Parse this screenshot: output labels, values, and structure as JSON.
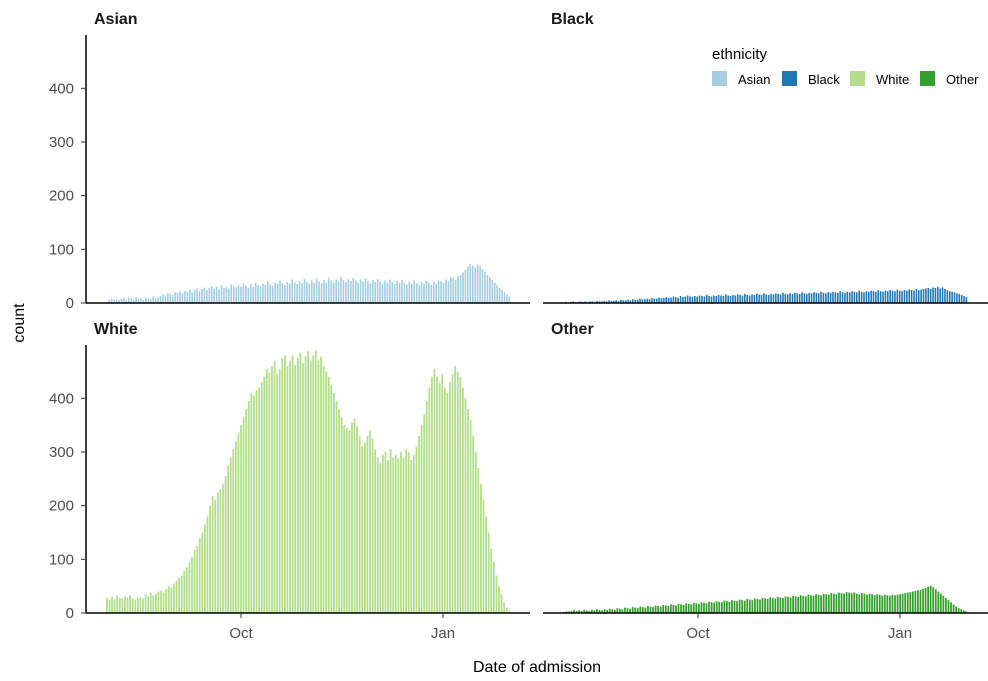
{
  "chart_data": {
    "type": "bar",
    "xlabel": "Date of admission",
    "ylabel": "count",
    "x_tick_labels": [
      "Oct",
      "Jan"
    ],
    "y_tick_labels": [
      "0",
      "100",
      "200",
      "300",
      "400"
    ],
    "ylim": [
      0,
      490
    ],
    "grid": false,
    "legend": {
      "title": "ethnicity",
      "placement": "top-right",
      "entries": [
        "Asian",
        "Black",
        "White",
        "Other"
      ]
    },
    "colors": {
      "Asian": "#a6cee3",
      "Black": "#1f78b4",
      "White": "#b2df8a",
      "Other": "#33a02c"
    },
    "facets": [
      {
        "name": "Asian",
        "color": "#a6cee3",
        "values": [
          2,
          6,
          8,
          6,
          7,
          5,
          8,
          9,
          5,
          10,
          8,
          6,
          11,
          8,
          9,
          6,
          10,
          8,
          7,
          12,
          9,
          11,
          13,
          16,
          14,
          18,
          17,
          15,
          20,
          19,
          22,
          18,
          23,
          21,
          25,
          20,
          24,
          27,
          22,
          26,
          29,
          24,
          28,
          31,
          26,
          30,
          25,
          33,
          28,
          30,
          27,
          35,
          31,
          29,
          33,
          30,
          36,
          32,
          28,
          35,
          30,
          38,
          33,
          31,
          36,
          34,
          40,
          35,
          32,
          38,
          36,
          42,
          37,
          33,
          39,
          36,
          44,
          38,
          35,
          41,
          37,
          45,
          39,
          36,
          42,
          38,
          46,
          40,
          37,
          43,
          38,
          47,
          42,
          38,
          44,
          40,
          48,
          43,
          39,
          45,
          41,
          47,
          42,
          38,
          44,
          40,
          46,
          41,
          37,
          43,
          39,
          45,
          40,
          36,
          42,
          38,
          44,
          39,
          35,
          41,
          37,
          43,
          38,
          34,
          40,
          36,
          42,
          37,
          33,
          39,
          35,
          41,
          38,
          34,
          40,
          36,
          42,
          40,
          37,
          44,
          41,
          48,
          46,
          43,
          50,
          52,
          57,
          62,
          68,
          73,
          70,
          66,
          72,
          69,
          63,
          58,
          52,
          48,
          43,
          38,
          33,
          28,
          24,
          20,
          16,
          12
        ],
        "ylim": [
          0,
          490
        ]
      },
      {
        "name": "Black",
        "color": "#1f78b4",
        "values": [
          1,
          2,
          1,
          2,
          3,
          2,
          2,
          3,
          2,
          3,
          2,
          3,
          3,
          2,
          4,
          3,
          3,
          4,
          3,
          5,
          4,
          4,
          5,
          4,
          6,
          5,
          5,
          6,
          5,
          7,
          6,
          6,
          8,
          7,
          7,
          8,
          7,
          9,
          8,
          8,
          10,
          9,
          9,
          11,
          10,
          10,
          12,
          11,
          10,
          13,
          11,
          12,
          14,
          12,
          11,
          13,
          12,
          14,
          13,
          12,
          15,
          13,
          12,
          14,
          13,
          15,
          14,
          13,
          16,
          14,
          13,
          15,
          14,
          16,
          15,
          14,
          17,
          15,
          14,
          16,
          15,
          17,
          16,
          15,
          18,
          16,
          15,
          17,
          16,
          18,
          17,
          16,
          19,
          17,
          16,
          18,
          17,
          19,
          18,
          17,
          20,
          18,
          17,
          19,
          18,
          20,
          19,
          18,
          21,
          19,
          18,
          20,
          19,
          21,
          20,
          19,
          22,
          20,
          19,
          21,
          20,
          22,
          21,
          20,
          23,
          21,
          20,
          22,
          21,
          23,
          22,
          21,
          24,
          22,
          21,
          23,
          22,
          24,
          23,
          22,
          25,
          23,
          22,
          24,
          23,
          25,
          24,
          23,
          26,
          24,
          25,
          26,
          27,
          28,
          26,
          29,
          28,
          30,
          27,
          29,
          26,
          24,
          22,
          21,
          20,
          18,
          17,
          15,
          13,
          11
        ],
        "ylim": [
          0,
          490
        ]
      },
      {
        "name": "White",
        "color": "#b2df8a",
        "values": [
          28,
          25,
          30,
          26,
          32,
          28,
          27,
          31,
          29,
          33,
          26,
          24,
          28,
          30,
          27,
          35,
          31,
          38,
          33,
          36,
          40,
          42,
          38,
          45,
          50,
          48,
          55,
          60,
          65,
          70,
          78,
          85,
          95,
          105,
          118,
          125,
          140,
          150,
          165,
          180,
          200,
          218,
          210,
          225,
          230,
          240,
          255,
          275,
          290,
          305,
          320,
          335,
          350,
          365,
          380,
          395,
          410,
          405,
          415,
          420,
          430,
          440,
          455,
          448,
          460,
          470,
          445,
          455,
          475,
          480,
          460,
          470,
          480,
          462,
          475,
          485,
          465,
          478,
          488,
          470,
          480,
          490,
          470,
          478,
          460,
          450,
          440,
          425,
          410,
          395,
          380,
          365,
          350,
          345,
          340,
          355,
          362,
          348,
          330,
          310,
          318,
          330,
          340,
          325,
          305,
          290,
          280,
          295,
          300,
          285,
          305,
          290,
          295,
          288,
          300,
          290,
          305,
          300,
          285,
          295,
          310,
          330,
          350,
          370,
          395,
          420,
          440,
          455,
          440,
          430,
          445,
          420,
          410,
          430,
          445,
          460,
          450,
          440,
          420,
          400,
          380,
          360,
          330,
          300,
          270,
          240,
          210,
          180,
          150,
          120,
          95,
          70,
          50,
          35,
          20,
          10,
          5
        ]
      },
      {
        "name": "Other",
        "color": "#33a02c",
        "values": [
          2,
          3,
          3,
          4,
          5,
          4,
          5,
          4,
          6,
          5,
          4,
          6,
          5,
          7,
          6,
          5,
          7,
          6,
          8,
          7,
          6,
          9,
          8,
          7,
          10,
          9,
          8,
          11,
          10,
          9,
          12,
          11,
          10,
          13,
          12,
          11,
          14,
          13,
          12,
          15,
          14,
          13,
          16,
          15,
          14,
          17,
          16,
          15,
          18,
          17,
          16,
          19,
          18,
          17,
          20,
          19,
          18,
          21,
          20,
          19,
          22,
          21,
          20,
          23,
          22,
          21,
          24,
          23,
          22,
          25,
          24,
          23,
          26,
          25,
          24,
          27,
          26,
          25,
          28,
          27,
          26,
          29,
          28,
          27,
          30,
          29,
          28,
          31,
          30,
          29,
          32,
          31,
          30,
          33,
          32,
          31,
          34,
          33,
          32,
          35,
          34,
          33,
          36,
          35,
          34,
          37,
          36,
          35,
          38,
          37,
          36,
          39,
          38,
          37,
          38,
          36,
          35,
          37,
          36,
          34,
          36,
          35,
          33,
          35,
          34,
          32,
          34,
          33,
          32,
          34,
          33,
          34,
          35,
          36,
          37,
          38,
          39,
          40,
          41,
          42,
          43,
          45,
          47,
          49,
          51,
          48,
          44,
          40,
          36,
          32,
          28,
          24,
          20,
          16,
          12,
          9,
          7,
          5,
          3
        ]
      }
    ]
  }
}
